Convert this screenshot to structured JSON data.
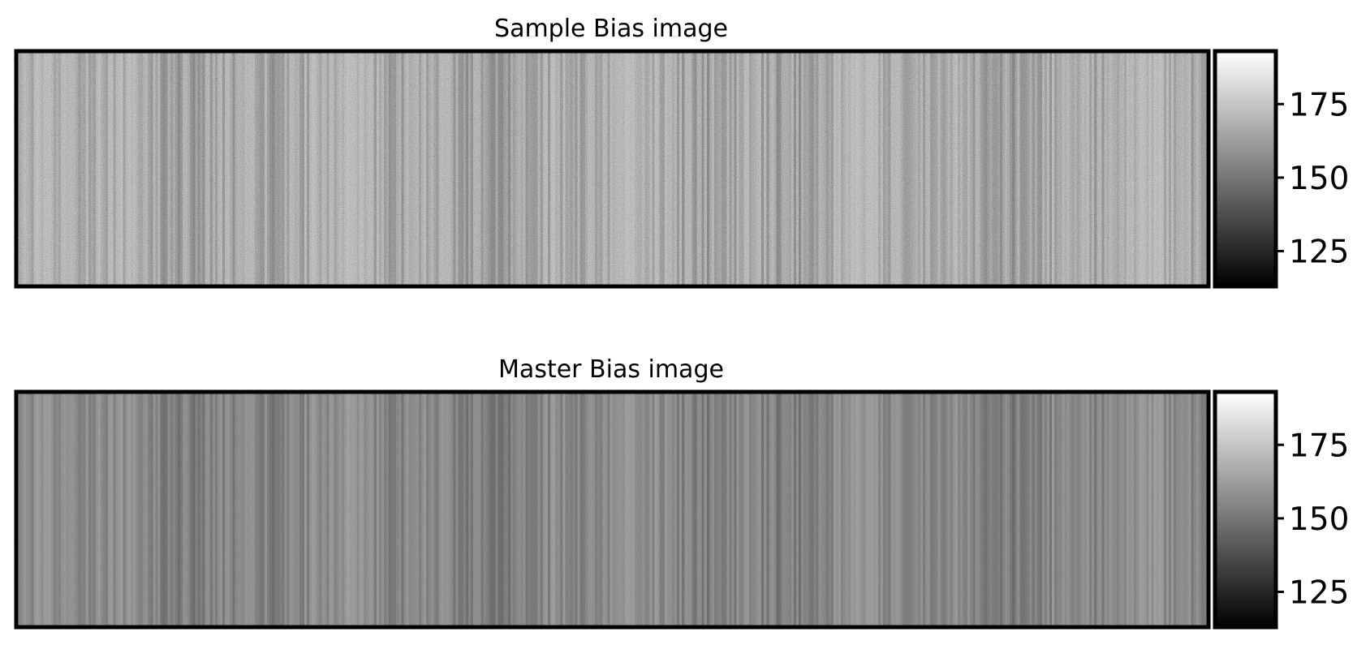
{
  "figure": {
    "background": "#ffffff",
    "frame_color": "#000000"
  },
  "chart_data": [
    {
      "type": "heatmap",
      "title": "Sample Bias image",
      "colormap": "gray",
      "value_range": [
        113,
        193
      ],
      "colorbar": {
        "ticks": [
          125,
          150,
          175
        ],
        "tick_labels": [
          "125",
          "150",
          "175"
        ]
      },
      "axes_visible": false,
      "grid": false,
      "image": {
        "description_of_values": "noisy bias frame with faint vertical column pattern",
        "typical_value": 151,
        "column_pattern_amplitude": 6,
        "pixel_noise_amplitude": 9
      }
    },
    {
      "type": "heatmap",
      "title": "Master Bias image",
      "colormap": "gray",
      "value_range": [
        113,
        193
      ],
      "colorbar": {
        "ticks": [
          125,
          150,
          175
        ],
        "tick_labels": [
          "125",
          "150",
          "175"
        ]
      },
      "axes_visible": false,
      "grid": false,
      "image": {
        "description_of_values": "averaged bias frame with vertical column pattern, low pixel noise",
        "typical_value": 151,
        "column_pattern_amplitude": 6,
        "pixel_noise_amplitude": 2.5
      }
    }
  ]
}
